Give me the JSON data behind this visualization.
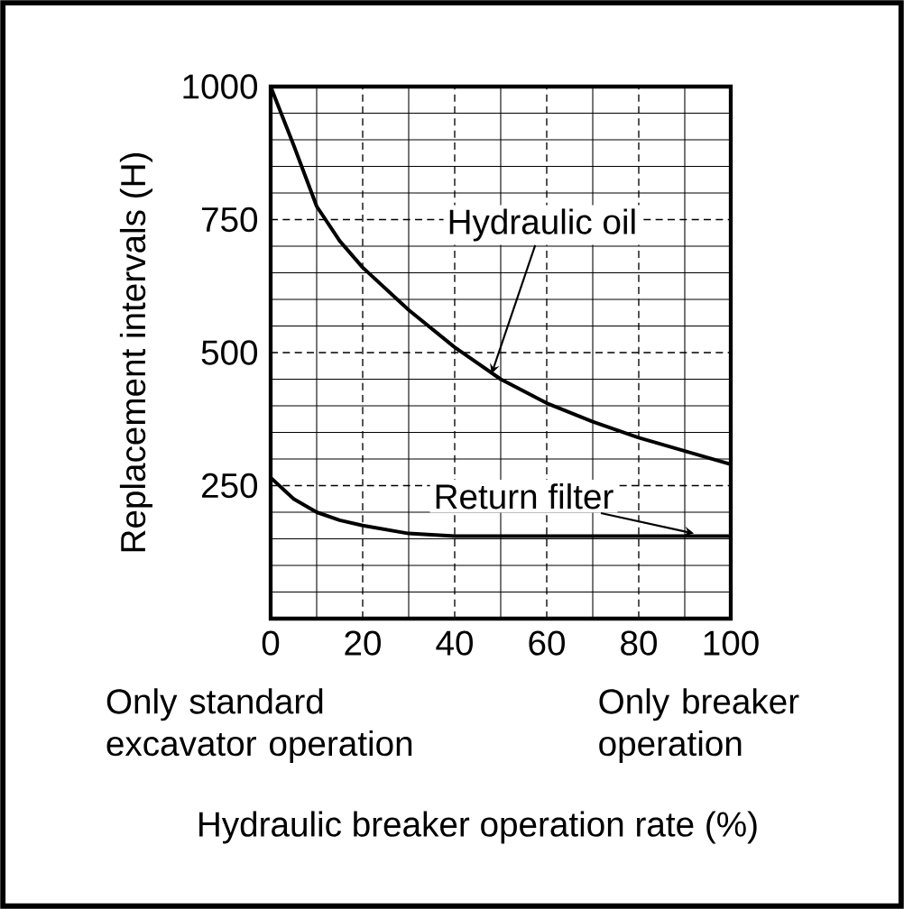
{
  "chart_data": {
    "type": "line",
    "xlabel": "Hydraulic breaker operation rate (%)",
    "ylabel": "Replacement intervals (H)",
    "xlim": [
      0,
      100
    ],
    "ylim": [
      0,
      1000
    ],
    "xticks": [
      0,
      20,
      40,
      60,
      80,
      100
    ],
    "yticks": [
      {
        "value": 0,
        "label": null
      },
      250,
      500,
      750,
      1000
    ],
    "x": [
      0,
      5,
      10,
      15,
      20,
      30,
      40,
      50,
      60,
      70,
      80,
      90,
      100
    ],
    "series": [
      {
        "color": "#000000",
        "values": [
          1000,
          890,
          775,
          710,
          660,
          580,
          510,
          450,
          405,
          370,
          340,
          315,
          290
        ]
      },
      {
        "color": "#000000",
        "values": [
          265,
          225,
          200,
          185,
          175,
          160,
          155,
          155,
          155,
          155,
          155,
          155,
          155
        ]
      }
    ],
    "annotations": [
      {
        "text": "Hydraulic oil",
        "x": 48,
        "y": 460
      },
      {
        "text": "Return filter",
        "x": 92,
        "y": 160
      },
      "Only standard excavator operation",
      "Only breaker operation"
    ],
    "grid": true,
    "marker": "none",
    "line_style": "solid"
  }
}
